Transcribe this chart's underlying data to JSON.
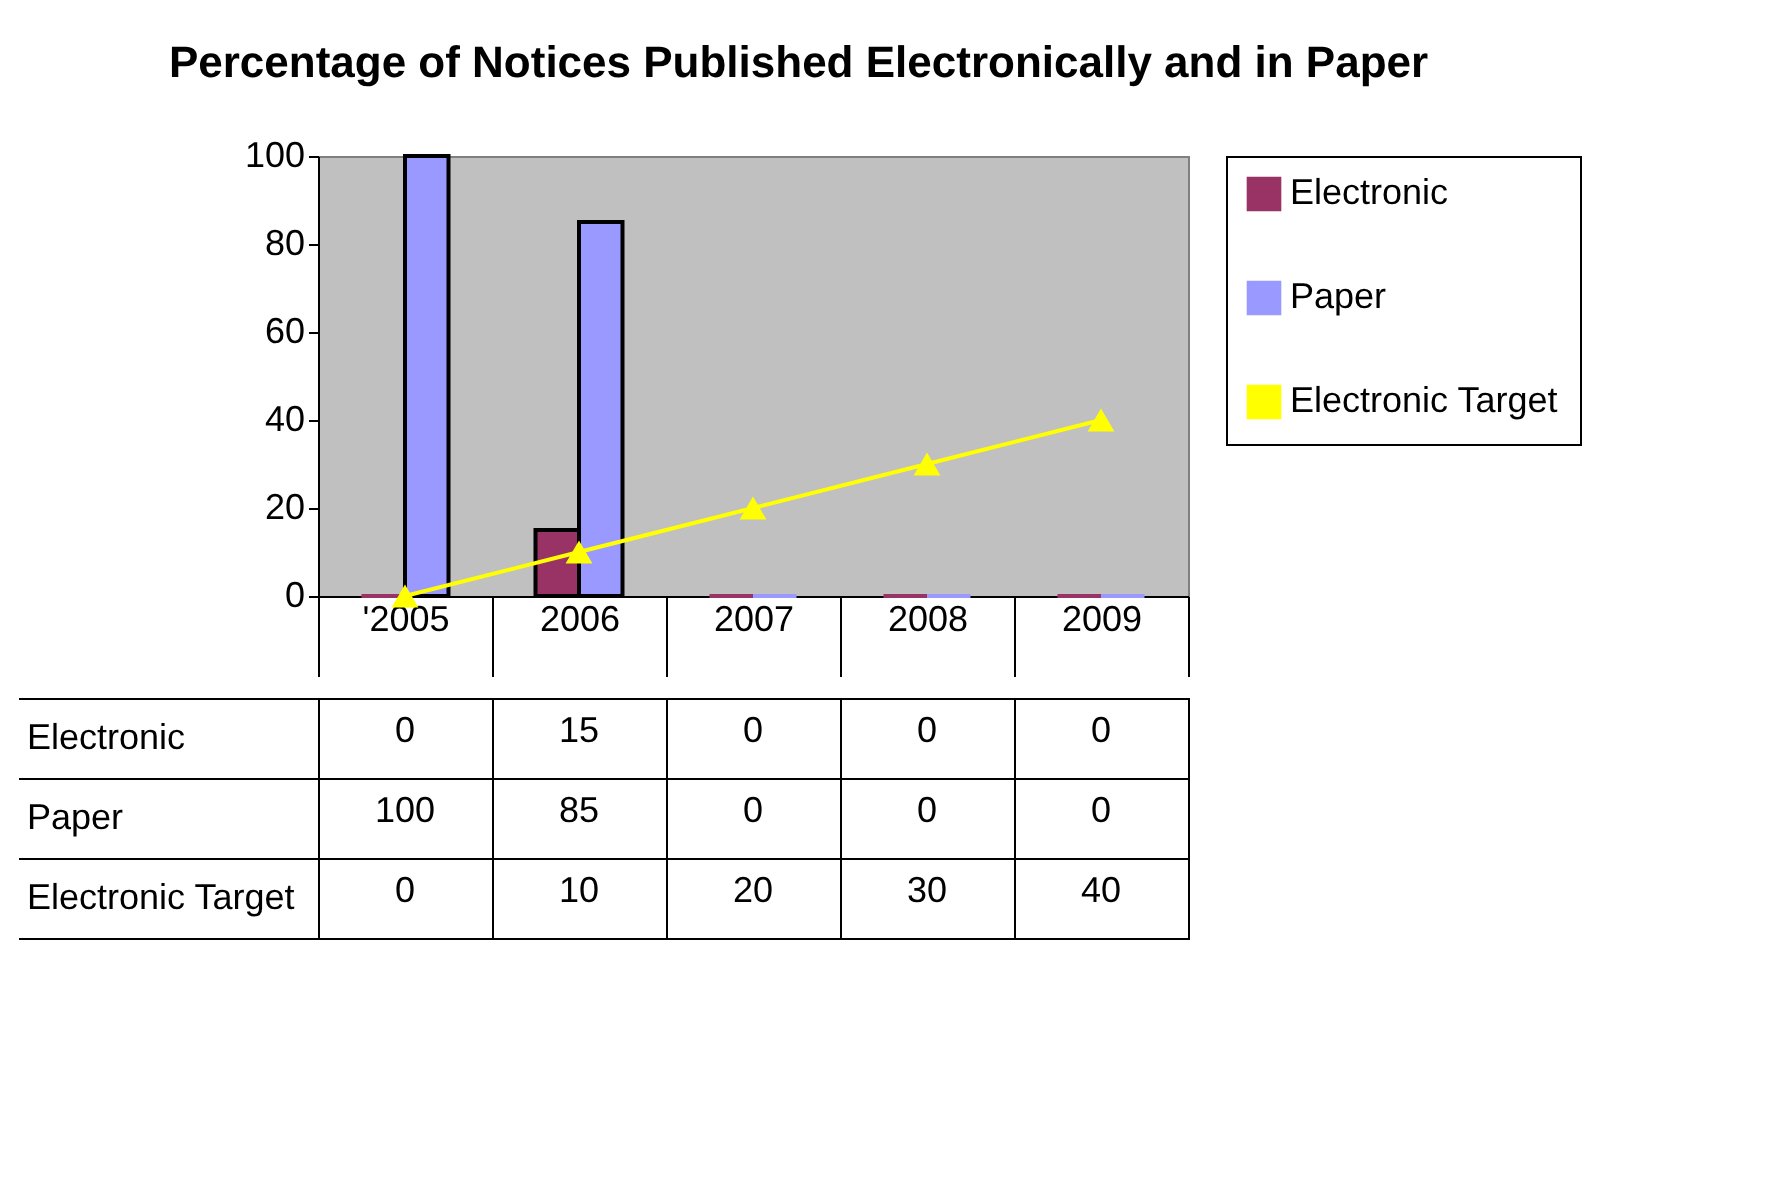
{
  "chart_data": {
    "type": "bar",
    "title": "Percentage of Notices Published Electronically and in Paper",
    "categories": [
      "'2005",
      "2006",
      "2007",
      "2008",
      "2009"
    ],
    "series": [
      {
        "name": "Electronic",
        "color": "#993366",
        "values": [
          0,
          15,
          0,
          0,
          0
        ]
      },
      {
        "name": "Paper",
        "color": "#9999ff",
        "values": [
          100,
          85,
          0,
          0,
          0
        ]
      },
      {
        "name": "Electronic Target",
        "type": "line",
        "color": "#ffff00",
        "values": [
          0,
          10,
          20,
          30,
          40
        ]
      }
    ],
    "ylim": [
      0,
      100
    ],
    "yticks": [
      0,
      20,
      40,
      60,
      80,
      100
    ],
    "grid": false,
    "legend": "right",
    "marker": "triangle",
    "data_labels": true
  }
}
